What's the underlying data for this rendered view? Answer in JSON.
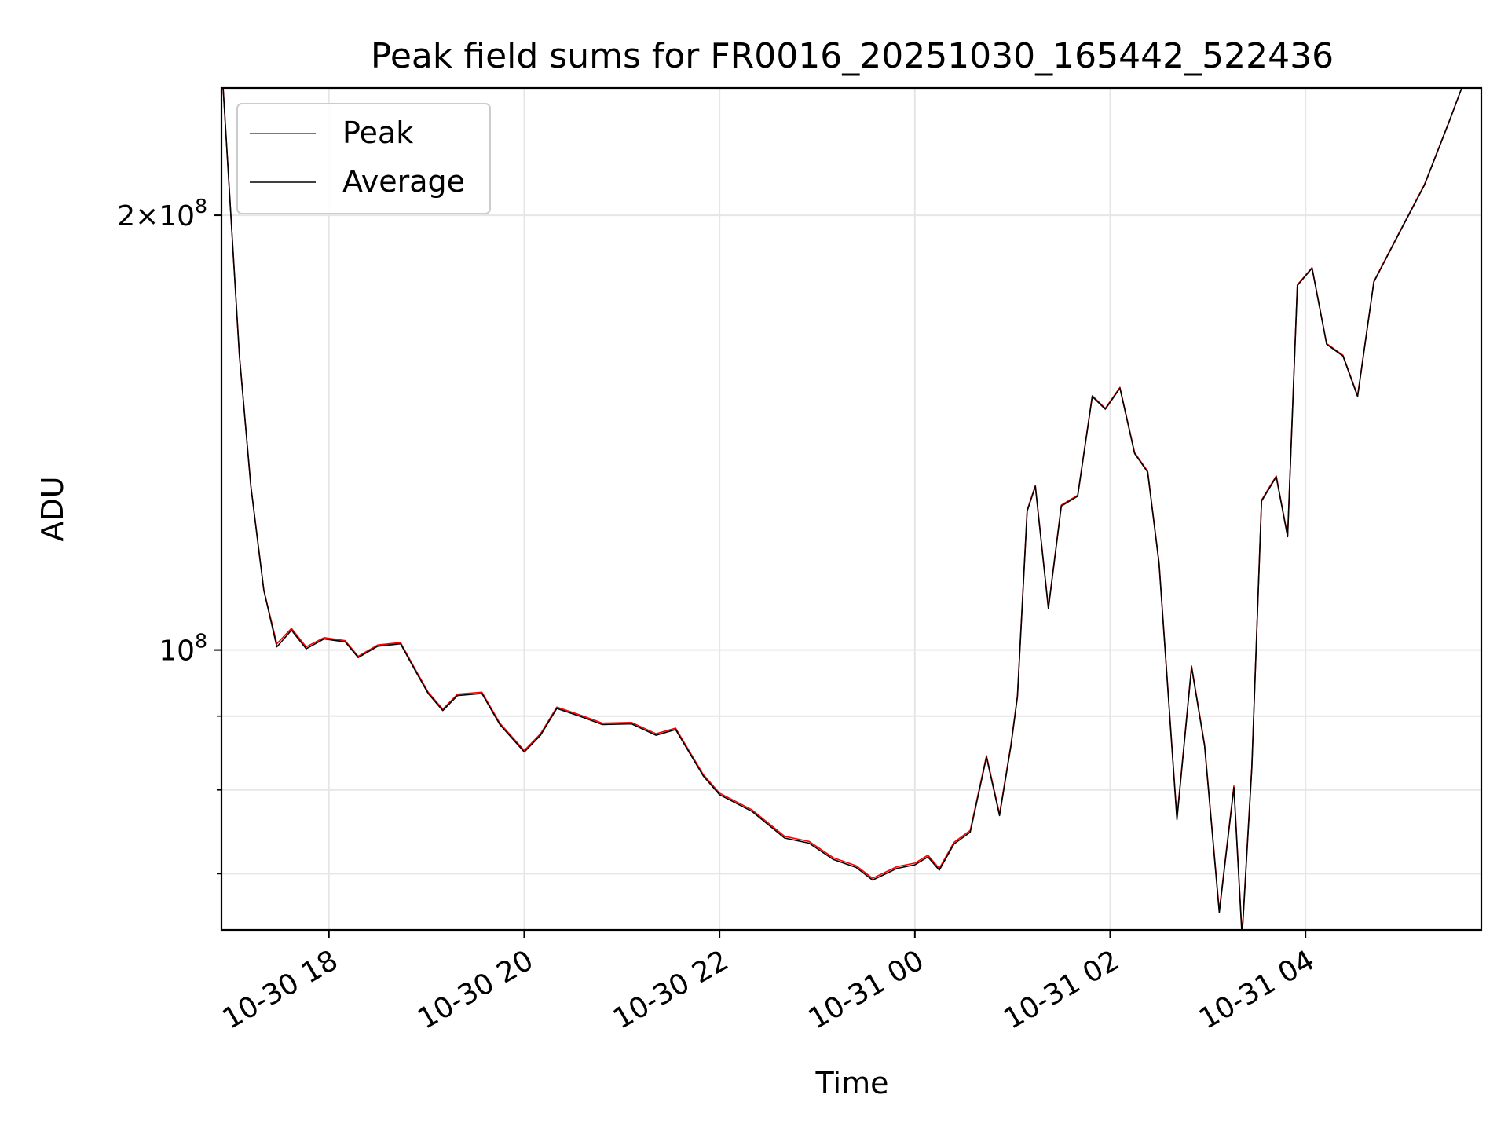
{
  "chart_data": {
    "type": "line",
    "title": "Peak field sums for FR0016_20251030_165442_522436",
    "xlabel": "Time",
    "ylabel": "ADU",
    "yscale": "log",
    "xlim": [
      "2025-10-30T16:54",
      "2025-10-31T05:48"
    ],
    "ylim": [
      64000000,
      245000000
    ],
    "grid": true,
    "legend_placement": "upper-left",
    "x_ticks": [
      "2025-10-30T18:00",
      "2025-10-30T20:00",
      "2025-10-30T22:00",
      "2025-10-31T00:00",
      "2025-10-31T02:00",
      "2025-10-31T04:00"
    ],
    "x_tick_labels": [
      "10-30 18",
      "10-30 20",
      "10-30 22",
      "10-31 00",
      "10-31 02",
      "10-31 04"
    ],
    "y_tick_labels": [
      {
        "value": 100000000,
        "mantissa": "",
        "exponent": "8"
      },
      {
        "value": 200000000,
        "mantissa": "2",
        "exponent": "8"
      }
    ],
    "y_minor_ticks": [
      70000000,
      80000000,
      90000000
    ],
    "series": [
      {
        "name": "Peak",
        "color": "#ff0000",
        "points": [
          [
            "2025-10-30T16:55",
            245000000
          ],
          [
            "2025-10-30T17:05",
            160000000
          ],
          [
            "2025-10-30T17:12",
            130000000
          ],
          [
            "2025-10-30T17:20",
            110000000
          ],
          [
            "2025-10-30T17:28",
            101000000
          ],
          [
            "2025-10-30T17:37",
            103500000
          ],
          [
            "2025-10-30T17:46",
            100500000
          ],
          [
            "2025-10-30T17:57",
            102000000
          ],
          [
            "2025-10-30T18:10",
            101500000
          ],
          [
            "2025-10-30T18:18",
            99000000
          ],
          [
            "2025-10-30T18:30",
            100800000
          ],
          [
            "2025-10-30T18:44",
            101200000
          ],
          [
            "2025-10-30T18:53",
            97000000
          ],
          [
            "2025-10-30T19:01",
            93500000
          ],
          [
            "2025-10-30T19:10",
            91000000
          ],
          [
            "2025-10-30T19:19",
            93200000
          ],
          [
            "2025-10-30T19:34",
            93500000
          ],
          [
            "2025-10-30T19:45",
            89000000
          ],
          [
            "2025-10-30T20:00",
            85200000
          ],
          [
            "2025-10-30T20:10",
            87500000
          ],
          [
            "2025-10-30T20:20",
            91300000
          ],
          [
            "2025-10-30T20:34",
            90200000
          ],
          [
            "2025-10-30T20:48",
            89000000
          ],
          [
            "2025-10-30T21:06",
            89100000
          ],
          [
            "2025-10-30T21:21",
            87500000
          ],
          [
            "2025-10-30T21:33",
            88300000
          ],
          [
            "2025-10-30T21:50",
            82000000
          ],
          [
            "2025-10-30T22:00",
            79600000
          ],
          [
            "2025-10-30T22:20",
            77500000
          ],
          [
            "2025-10-30T22:40",
            74300000
          ],
          [
            "2025-10-30T22:55",
            73700000
          ],
          [
            "2025-10-30T23:10",
            71800000
          ],
          [
            "2025-10-30T23:24",
            70900000
          ],
          [
            "2025-10-30T23:34",
            69500000
          ],
          [
            "2025-10-30T23:49",
            70800000
          ],
          [
            "2025-10-31T00:00",
            71200000
          ],
          [
            "2025-10-31T00:08",
            72100000
          ],
          [
            "2025-10-31T00:15",
            70600000
          ],
          [
            "2025-10-31T00:24",
            73600000
          ],
          [
            "2025-10-31T00:34",
            75000000
          ],
          [
            "2025-10-31T00:44",
            84500000
          ],
          [
            "2025-10-31T00:52",
            77000000
          ],
          [
            "2025-10-31T00:59",
            86000000
          ],
          [
            "2025-10-31T01:03",
            93000000
          ],
          [
            "2025-10-31T01:09",
            125000000
          ],
          [
            "2025-10-31T01:14",
            130000000
          ],
          [
            "2025-10-31T01:22",
            107000000
          ],
          [
            "2025-10-31T01:30",
            126000000
          ],
          [
            "2025-10-31T01:40",
            128000000
          ],
          [
            "2025-10-31T01:49",
            150000000
          ],
          [
            "2025-10-31T01:57",
            147000000
          ],
          [
            "2025-10-31T02:06",
            152000000
          ],
          [
            "2025-10-31T02:15",
            137000000
          ],
          [
            "2025-10-31T02:23",
            133000000
          ],
          [
            "2025-10-31T02:30",
            115000000
          ],
          [
            "2025-10-31T02:41",
            76500000
          ],
          [
            "2025-10-31T02:50",
            97500000
          ],
          [
            "2025-10-31T02:58",
            86000000
          ],
          [
            "2025-10-31T03:07",
            66000000
          ],
          [
            "2025-10-31T03:16",
            80500000
          ],
          [
            "2025-10-31T03:21",
            63500000
          ],
          [
            "2025-10-31T03:27",
            83000000
          ],
          [
            "2025-10-31T03:33",
            127000000
          ],
          [
            "2025-10-31T03:42",
            132000000
          ],
          [
            "2025-10-31T03:49",
            120000000
          ],
          [
            "2025-10-31T03:55",
            179000000
          ],
          [
            "2025-10-31T04:04",
            184000000
          ],
          [
            "2025-10-31T04:13",
            163000000
          ],
          [
            "2025-10-31T04:23",
            160000000
          ],
          [
            "2025-10-31T04:32",
            150000000
          ],
          [
            "2025-10-31T04:42",
            180000000
          ],
          [
            "2025-10-31T04:58",
            195000000
          ],
          [
            "2025-10-31T05:13",
            210000000
          ],
          [
            "2025-10-31T05:28",
            232000000
          ],
          [
            "2025-10-31T05:36",
            245000000
          ]
        ]
      },
      {
        "name": "Average",
        "color": "#000000",
        "points": [
          [
            "2025-10-30T16:55",
            245000000
          ],
          [
            "2025-10-30T17:05",
            160000000
          ],
          [
            "2025-10-30T17:12",
            130000000
          ],
          [
            "2025-10-30T17:20",
            110000000
          ],
          [
            "2025-10-30T17:28",
            100500000
          ],
          [
            "2025-10-30T17:37",
            103200000
          ],
          [
            "2025-10-30T17:46",
            100200000
          ],
          [
            "2025-10-30T17:57",
            101800000
          ],
          [
            "2025-10-30T18:10",
            101300000
          ],
          [
            "2025-10-30T18:18",
            98800000
          ],
          [
            "2025-10-30T18:30",
            100600000
          ],
          [
            "2025-10-30T18:44",
            101000000
          ],
          [
            "2025-10-30T18:53",
            96800000
          ],
          [
            "2025-10-30T19:01",
            93300000
          ],
          [
            "2025-10-30T19:10",
            90800000
          ],
          [
            "2025-10-30T19:19",
            93000000
          ],
          [
            "2025-10-30T19:34",
            93300000
          ],
          [
            "2025-10-30T19:45",
            88800000
          ],
          [
            "2025-10-30T20:00",
            85000000
          ],
          [
            "2025-10-30T20:10",
            87300000
          ],
          [
            "2025-10-30T20:20",
            91100000
          ],
          [
            "2025-10-30T20:34",
            90000000
          ],
          [
            "2025-10-30T20:48",
            88800000
          ],
          [
            "2025-10-30T21:06",
            88900000
          ],
          [
            "2025-10-30T21:21",
            87300000
          ],
          [
            "2025-10-30T21:33",
            88100000
          ],
          [
            "2025-10-30T21:50",
            81800000
          ],
          [
            "2025-10-30T22:00",
            79400000
          ],
          [
            "2025-10-30T22:20",
            77300000
          ],
          [
            "2025-10-30T22:40",
            74100000
          ],
          [
            "2025-10-30T22:55",
            73500000
          ],
          [
            "2025-10-30T23:10",
            71600000
          ],
          [
            "2025-10-30T23:24",
            70700000
          ],
          [
            "2025-10-30T23:34",
            69300000
          ],
          [
            "2025-10-30T23:49",
            70600000
          ],
          [
            "2025-10-31T00:00",
            71000000
          ],
          [
            "2025-10-31T00:08",
            71900000
          ],
          [
            "2025-10-31T00:15",
            70400000
          ],
          [
            "2025-10-31T00:24",
            73400000
          ],
          [
            "2025-10-31T00:34",
            74800000
          ],
          [
            "2025-10-31T00:44",
            84300000
          ],
          [
            "2025-10-31T00:52",
            76800000
          ],
          [
            "2025-10-31T00:59",
            85800000
          ],
          [
            "2025-10-31T01:03",
            92800000
          ],
          [
            "2025-10-31T01:09",
            124800000
          ],
          [
            "2025-10-31T01:14",
            129800000
          ],
          [
            "2025-10-31T01:22",
            106800000
          ],
          [
            "2025-10-31T01:30",
            125800000
          ],
          [
            "2025-10-31T01:40",
            127800000
          ],
          [
            "2025-10-31T01:49",
            149800000
          ],
          [
            "2025-10-31T01:57",
            146800000
          ],
          [
            "2025-10-31T02:06",
            151800000
          ],
          [
            "2025-10-31T02:15",
            136800000
          ],
          [
            "2025-10-31T02:23",
            132800000
          ],
          [
            "2025-10-31T02:30",
            114800000
          ],
          [
            "2025-10-31T02:41",
            76300000
          ],
          [
            "2025-10-31T02:50",
            97300000
          ],
          [
            "2025-10-31T02:58",
            85800000
          ],
          [
            "2025-10-31T03:07",
            65800000
          ],
          [
            "2025-10-31T03:16",
            80300000
          ],
          [
            "2025-10-31T03:21",
            63300000
          ],
          [
            "2025-10-31T03:27",
            82800000
          ],
          [
            "2025-10-31T03:33",
            126800000
          ],
          [
            "2025-10-31T03:42",
            131800000
          ],
          [
            "2025-10-31T03:49",
            119800000
          ],
          [
            "2025-10-31T03:55",
            178800000
          ],
          [
            "2025-10-31T04:04",
            183800000
          ],
          [
            "2025-10-31T04:13",
            162800000
          ],
          [
            "2025-10-31T04:23",
            159800000
          ],
          [
            "2025-10-31T04:32",
            149800000
          ],
          [
            "2025-10-31T04:42",
            179800000
          ],
          [
            "2025-10-31T04:58",
            194800000
          ],
          [
            "2025-10-31T05:13",
            209800000
          ],
          [
            "2025-10-31T05:28",
            231800000
          ],
          [
            "2025-10-31T05:36",
            245000000
          ]
        ]
      }
    ]
  }
}
